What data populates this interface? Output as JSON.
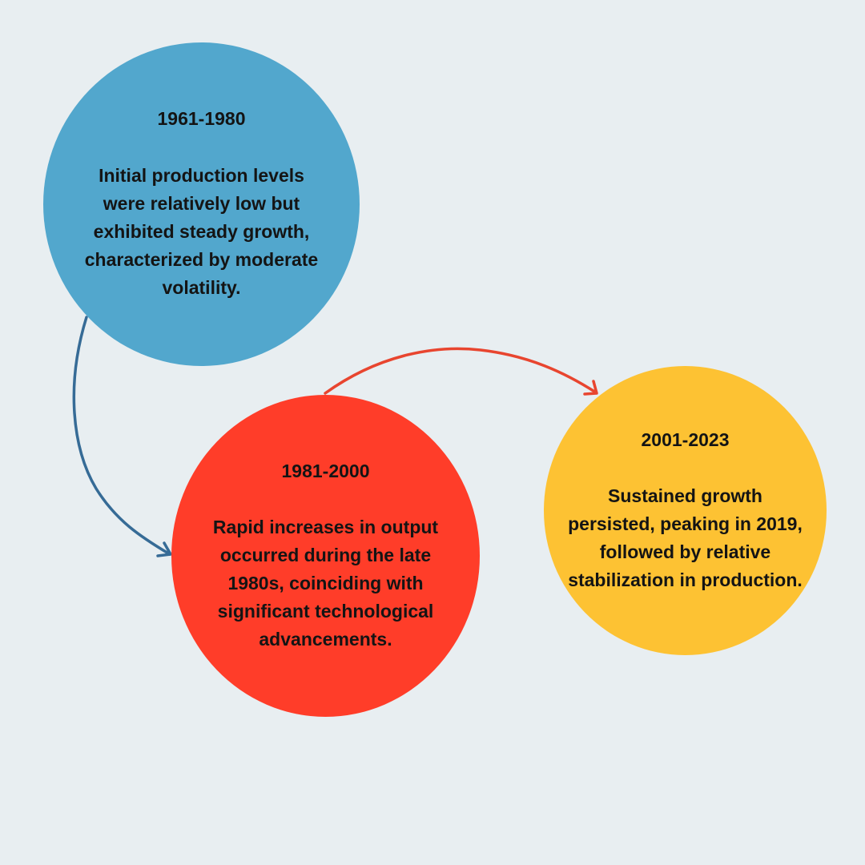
{
  "colors": {
    "background": "#e8eef1",
    "blue": "#52a7cd",
    "red": "#ff3d29",
    "yellow": "#fdc233",
    "arrow_blue": "#366b96",
    "arrow_red": "#e8452f"
  },
  "stages": [
    {
      "period": "1961-1980",
      "description": "Initial production levels were relatively low but exhibited steady growth, characterized by moderate volatility."
    },
    {
      "period": "1981-2000",
      "description": "Rapid increases in output occurred during the late 1980s, coinciding with significant technological advancements."
    },
    {
      "period": "2001-2023",
      "description": "Sustained growth persisted, peaking in 2019, followed by relative stabilization in production."
    }
  ]
}
